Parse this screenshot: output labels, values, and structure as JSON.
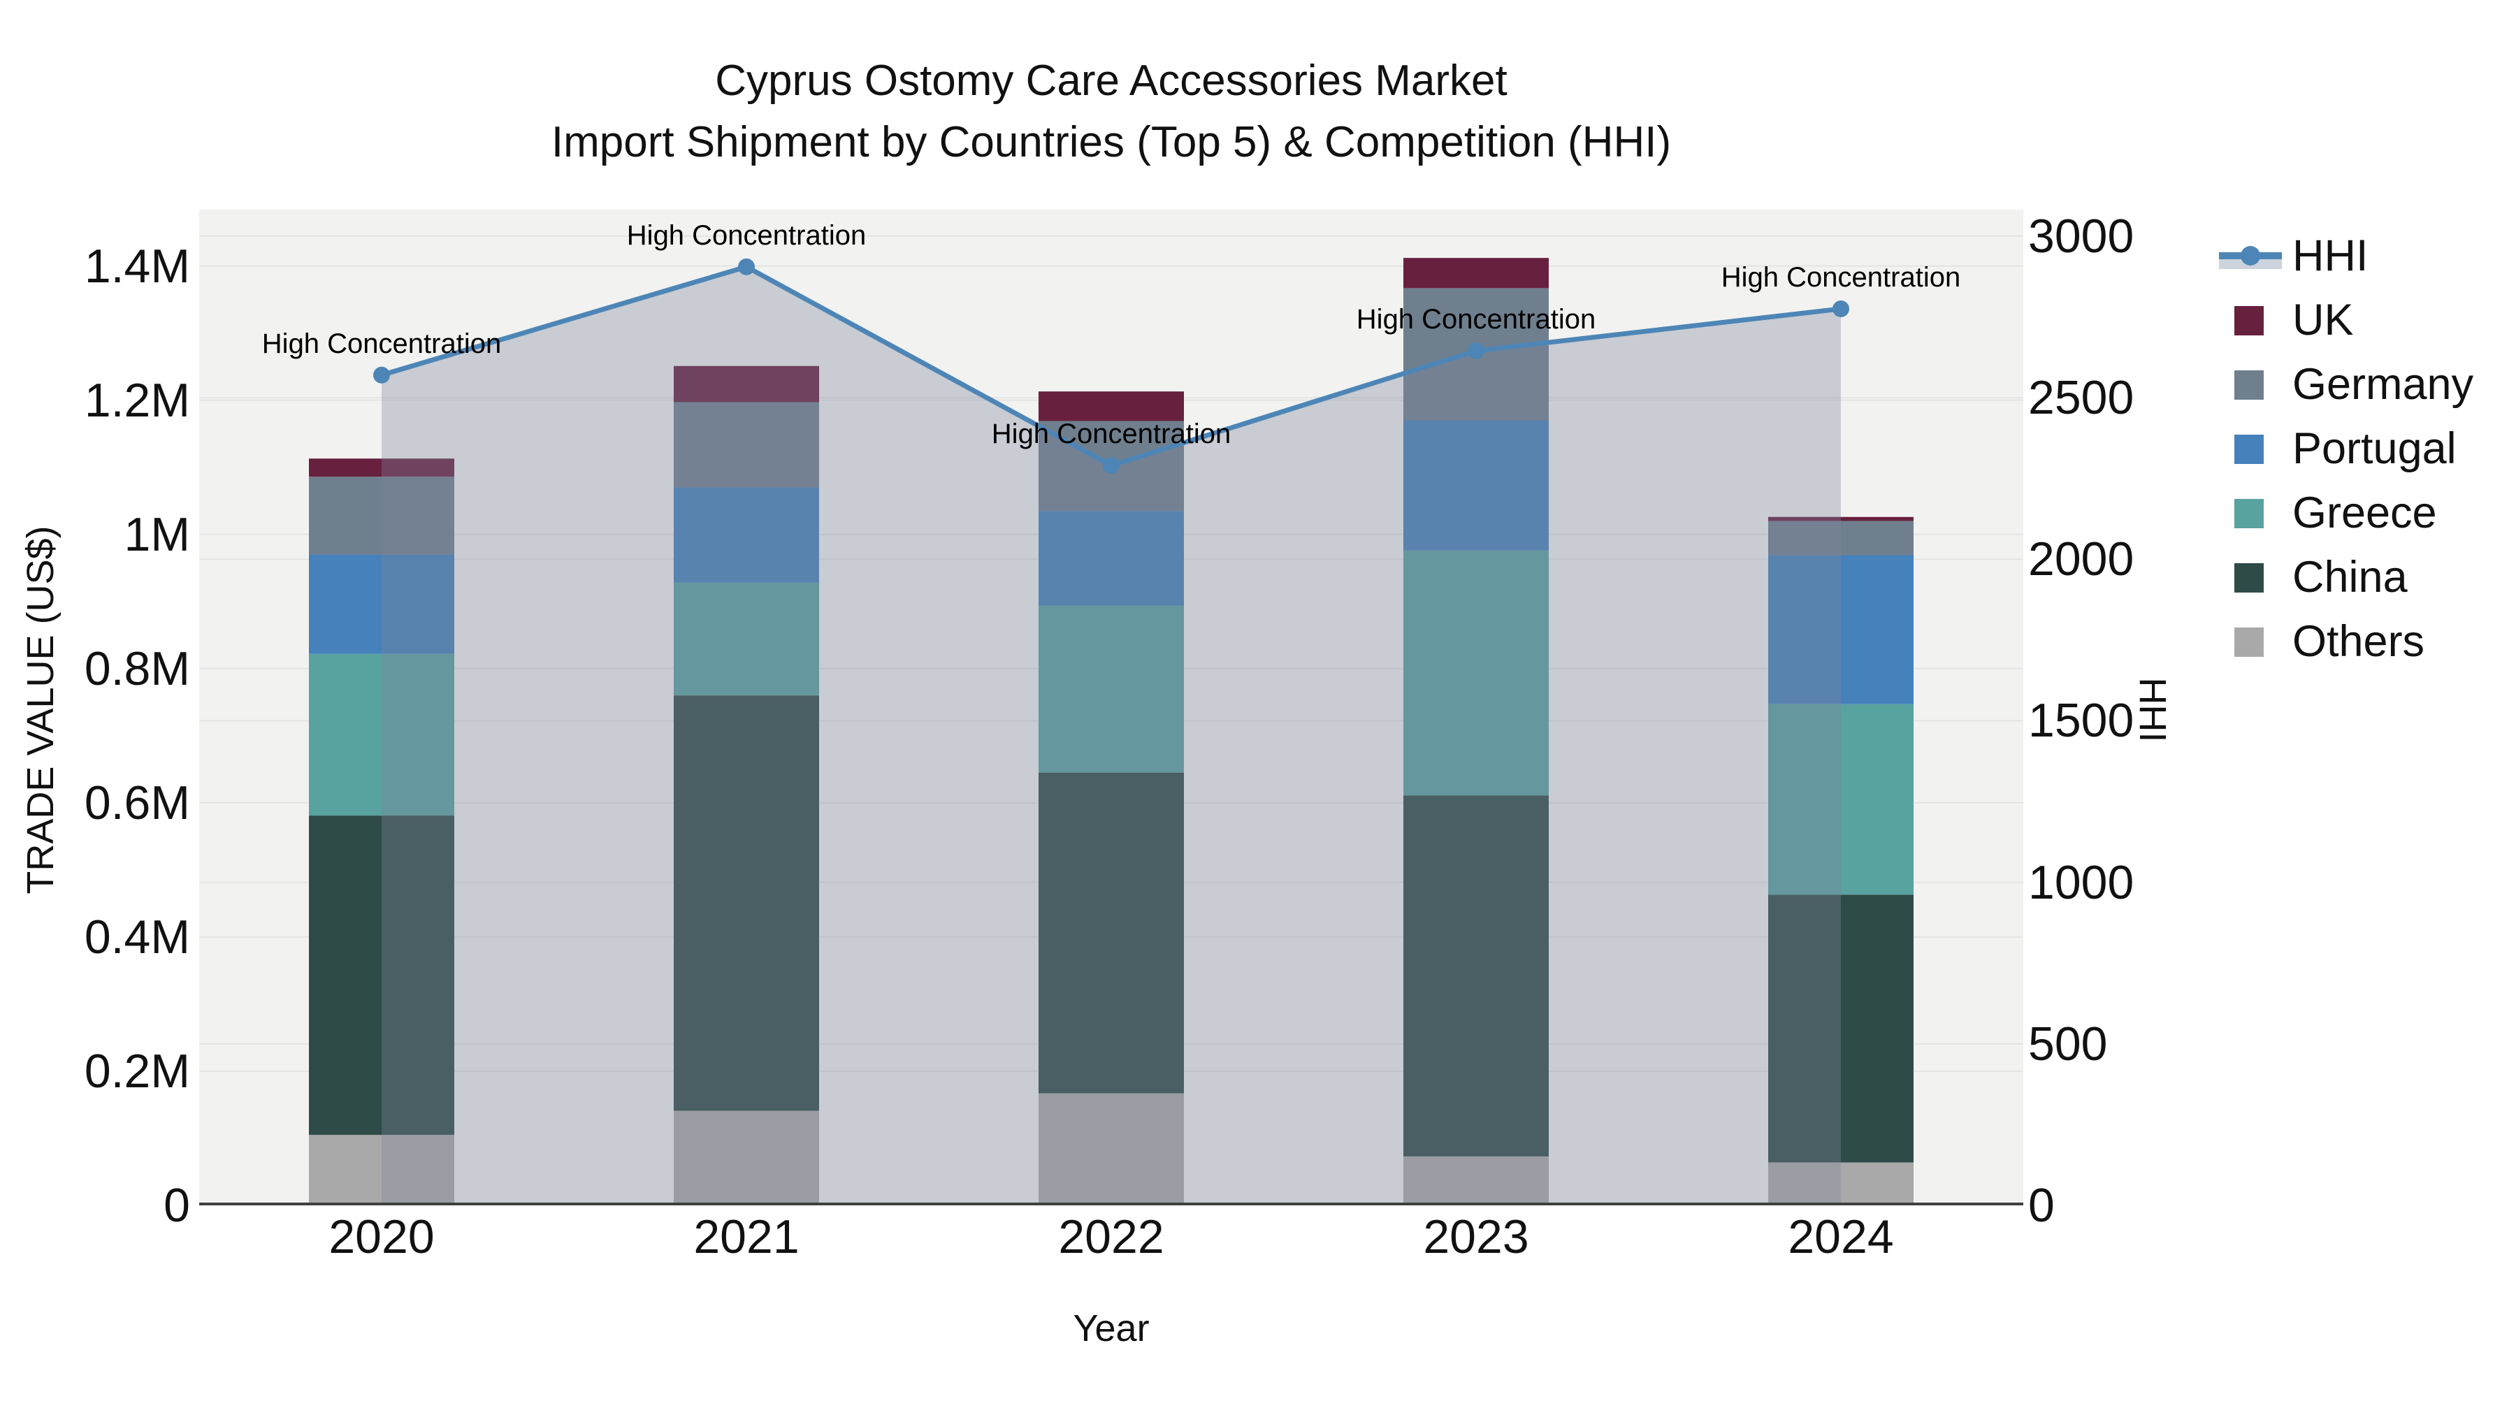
{
  "title": {
    "line1": "Cyprus Ostomy Care Accessories Market",
    "line2": "Import Shipment by Countries (Top 5) & Competition (HHI)"
  },
  "chart_data": {
    "type": "bar+line",
    "categories": [
      "2020",
      "2021",
      "2022",
      "2023",
      "2024"
    ],
    "xlabel": "Year",
    "y_left": {
      "title": "TRADE VALUE (US$)",
      "range": [
        0,
        1484000
      ],
      "ticks": [
        {
          "label": "0",
          "value": 0
        },
        {
          "label": "0.2M",
          "value": 200000
        },
        {
          "label": "0.4M",
          "value": 400000
        },
        {
          "label": "0.6M",
          "value": 600000
        },
        {
          "label": "0.8M",
          "value": 800000
        },
        {
          "label": "1M",
          "value": 1000000
        },
        {
          "label": "1.2M",
          "value": 1200000
        },
        {
          "label": "1.4M",
          "value": 1400000
        }
      ]
    },
    "y_right": {
      "title": "HHI",
      "range": [
        0,
        3082
      ],
      "ticks": [
        {
          "label": "0",
          "value": 0
        },
        {
          "label": "500",
          "value": 500
        },
        {
          "label": "1000",
          "value": 1000
        },
        {
          "label": "1500",
          "value": 1500
        },
        {
          "label": "2000",
          "value": 2000
        },
        {
          "label": "2500",
          "value": 2500
        },
        {
          "label": "3000",
          "value": 3000
        }
      ]
    },
    "series": [
      {
        "name": "UK",
        "color": "#68203f",
        "values": [
          27000,
          54000,
          44000,
          45000,
          6000
        ]
      },
      {
        "name": "Germany",
        "color": "#6f7f8e",
        "values": [
          116000,
          127000,
          134000,
          197000,
          51000
        ]
      },
      {
        "name": "Portugal",
        "color": "#4581bb",
        "values": [
          148000,
          142000,
          141000,
          194000,
          222000
        ]
      },
      {
        "name": "Greece",
        "color": "#58a2a0",
        "values": [
          241000,
          168000,
          249000,
          365000,
          284000
        ]
      },
      {
        "name": "China",
        "color": "#2e4b48",
        "values": [
          476000,
          619000,
          478000,
          538000,
          399000
        ]
      },
      {
        "name": "Others",
        "color": "#a9a9a9",
        "values": [
          105000,
          141000,
          167000,
          73000,
          64000
        ]
      }
    ],
    "stack_order": [
      "Others",
      "China",
      "Greece",
      "Portugal",
      "Germany",
      "UK"
    ],
    "line_series": {
      "name": "HHI",
      "color": "#4d86b6",
      "area_fill": "rgba(125,135,155,0.35)",
      "legend_fill": "#ccd3dc",
      "values": [
        2570,
        2905,
        2290,
        2645,
        2775
      ]
    },
    "annotations": [
      {
        "text": "High Concentration",
        "category_index": 0
      },
      {
        "text": "High Concentration",
        "category_index": 1
      },
      {
        "text": "High Concentration",
        "category_index": 2
      },
      {
        "text": "High Concentration",
        "category_index": 3
      },
      {
        "text": "High Concentration",
        "category_index": 4
      }
    ],
    "style": {
      "plot_bg": "#f2f2f1",
      "grid_color": "#e4e4e4",
      "axis_line_color": "#404040"
    },
    "legend_position": "right",
    "grid": true
  }
}
